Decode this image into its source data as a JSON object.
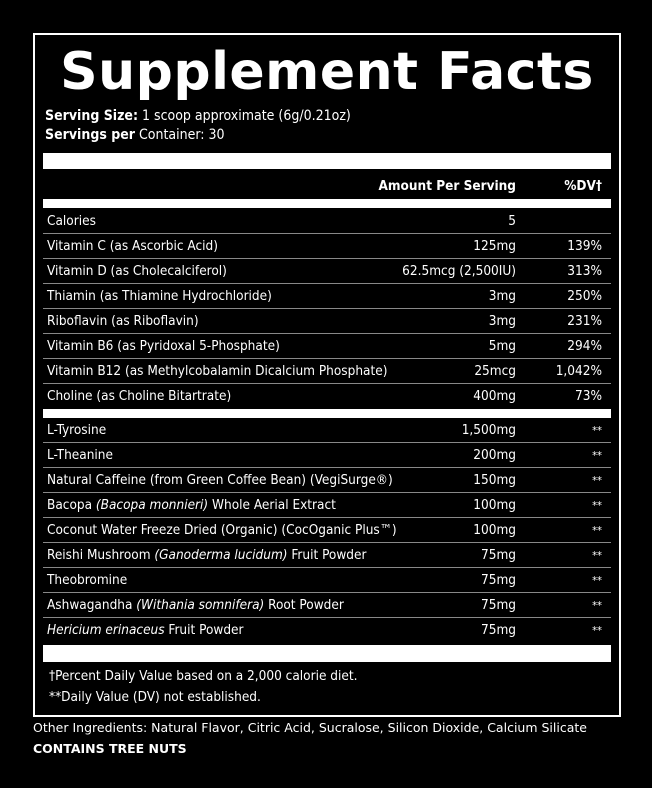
{
  "title": "Supplement Facts",
  "serving": {
    "size_label": "Serving Size:",
    "size_value": " 1 scoop approximate (6g/0.21oz)",
    "per_label": "Servings per",
    "per_value": " Container: 30"
  },
  "header": {
    "amount": "Amount Per Serving",
    "dv": "%DV†"
  },
  "section1": [
    {
      "name": "Calories",
      "amount": "5",
      "dv": ""
    },
    {
      "name": "Vitamin C (as Ascorbic Acid)",
      "amount": "125mg",
      "dv": "139%"
    },
    {
      "name": "Vitamin D (as Cholecalciferol)",
      "amount": "62.5mcg (2,500IU)",
      "dv": "313%"
    },
    {
      "name": "Thiamin (as Thiamine Hydrochloride)",
      "amount": "3mg",
      "dv": "250%"
    },
    {
      "name": "Riboflavin (as Riboflavin)",
      "amount": "3mg",
      "dv": "231%"
    },
    {
      "name": "Vitamin B6 (as Pyridoxal 5-Phosphate)",
      "amount": "5mg",
      "dv": "294%"
    },
    {
      "name": "Vitamin B12 (as Methylcobalamin Dicalcium Phosphate)",
      "amount": "25mcg",
      "dv": "1,042%"
    },
    {
      "name": "Choline (as Choline Bitartrate)",
      "amount": "400mg",
      "dv": "73%"
    }
  ],
  "section2": [
    {
      "pre": "L-Tyrosine",
      "it": "",
      "post": "",
      "amount": "1,500mg",
      "dv": "**"
    },
    {
      "pre": "L-Theanine",
      "it": "",
      "post": "",
      "amount": "200mg",
      "dv": "**"
    },
    {
      "pre": "Natural Caffeine (from Green Coffee Bean) (VegiSurge®)",
      "it": "",
      "post": "",
      "amount": "150mg",
      "dv": "**"
    },
    {
      "pre": "Bacopa ",
      "it": "(Bacopa monnieri)",
      "post": " Whole Aerial Extract",
      "amount": "100mg",
      "dv": "**"
    },
    {
      "pre": "Coconut Water Freeze Dried (Organic) (CocOganic Plus™)",
      "it": "",
      "post": "",
      "amount": "100mg",
      "dv": "**"
    },
    {
      "pre": "Reishi Mushroom ",
      "it": "(Ganoderma lucidum)",
      "post": " Fruit Powder",
      "amount": "75mg",
      "dv": "**"
    },
    {
      "pre": "Theobromine",
      "it": "",
      "post": "",
      "amount": "75mg",
      "dv": "**"
    },
    {
      "pre": "Ashwagandha ",
      "it": "(Withania somnifera)",
      "post": " Root Powder",
      "amount": "75mg",
      "dv": "**"
    },
    {
      "pre": "",
      "it": "Hericium erinaceus",
      "post": " Fruit Powder",
      "amount": "75mg",
      "dv": "**"
    }
  ],
  "footnotes": {
    "dv": "†Percent Daily Value based on a 2,000 calorie diet.",
    "na": "**Daily Value (DV) not established."
  },
  "other": {
    "ingredients": "Other Ingredients: Natural Flavor, Citric Acid, Sucralose, Silicon Dioxide, Calcium Silicate",
    "allergen": "CONTAINS TREE NUTS"
  }
}
